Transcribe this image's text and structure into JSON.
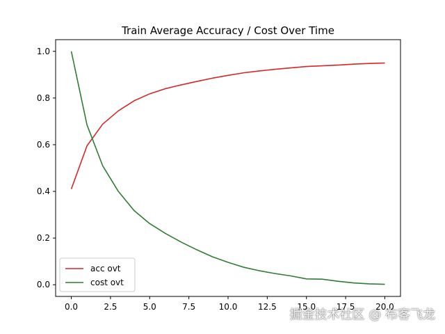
{
  "chart_data": {
    "type": "line",
    "title": "Train Average Accuracy / Cost Over Time",
    "xlabel": "",
    "ylabel": "",
    "xlim": [
      -1.0,
      21.0
    ],
    "ylim": [
      -0.05,
      1.05
    ],
    "xticks": [
      0.0,
      2.5,
      5.0,
      7.5,
      10.0,
      12.5,
      15.0,
      17.5,
      20.0
    ],
    "xtick_labels": [
      "0.0",
      "2.5",
      "5.0",
      "7.5",
      "10.0",
      "12.5",
      "15.0",
      "17.5",
      "20.0"
    ],
    "yticks": [
      0.0,
      0.2,
      0.4,
      0.6,
      0.8,
      1.0
    ],
    "ytick_labels": [
      "0.0",
      "0.2",
      "0.4",
      "0.6",
      "0.8",
      "1.0"
    ],
    "grid": false,
    "legend_position": "lower-left",
    "x": [
      0,
      1,
      2,
      3,
      4,
      5,
      6,
      7,
      8,
      9,
      10,
      11,
      12,
      13,
      14,
      15,
      16,
      17,
      18,
      19,
      20
    ],
    "series": [
      {
        "name": "acc ovt",
        "color": "#d62728",
        "values": [
          0.41,
          0.595,
          0.688,
          0.745,
          0.788,
          0.818,
          0.84,
          0.856,
          0.871,
          0.885,
          0.897,
          0.908,
          0.916,
          0.923,
          0.929,
          0.935,
          0.938,
          0.941,
          0.945,
          0.948,
          0.95
        ]
      },
      {
        "name": "cost ovt",
        "color": "#2e7d32",
        "values": [
          1.0,
          0.685,
          0.51,
          0.4,
          0.318,
          0.262,
          0.22,
          0.183,
          0.15,
          0.12,
          0.096,
          0.075,
          0.06,
          0.048,
          0.038,
          0.025,
          0.024,
          0.015,
          0.008,
          0.004,
          0.002
        ]
      }
    ]
  },
  "watermark_text": "掘金技术社区 @ 布客飞龙"
}
